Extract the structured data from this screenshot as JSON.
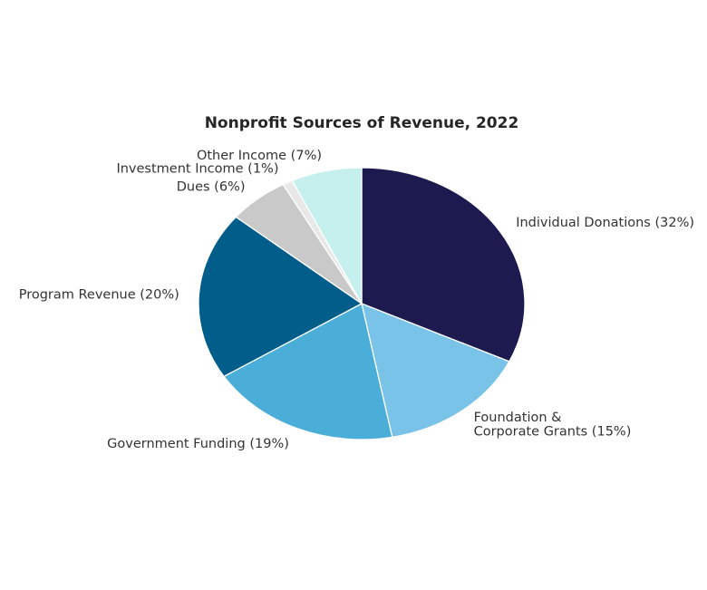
{
  "chart_data": {
    "type": "pie",
    "title": "Nonprofit Sources of Revenue, 2022",
    "start_angle_deg": 90,
    "direction": "clockwise",
    "slices": [
      {
        "label": "Individual Donations (32%)",
        "value": 32,
        "color": "#1c1a4e"
      },
      {
        "label": "Foundation &\nCorporate Grants (15%)",
        "value": 15,
        "color": "#79c3e8"
      },
      {
        "label": "Government Funding (19%)",
        "value": 19,
        "color": "#4aaed8"
      },
      {
        "label": "Program Revenue (20%)",
        "value": 20,
        "color": "#015d8a"
      },
      {
        "label": "Dues (6%)",
        "value": 6,
        "color": "#c9c9c9"
      },
      {
        "label": "Investment Income (1%)",
        "value": 1,
        "color": "#e8e8e8"
      },
      {
        "label": "Other Income (7%)",
        "value": 7,
        "color": "#c6f0ee"
      }
    ]
  }
}
